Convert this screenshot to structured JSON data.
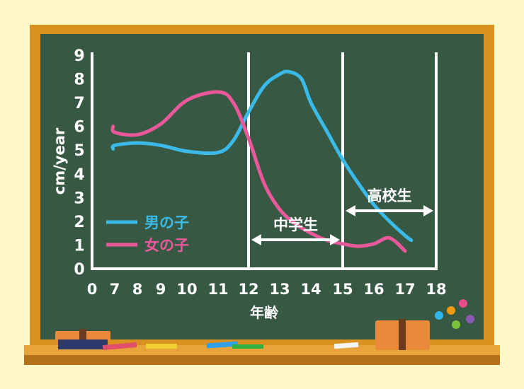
{
  "chart_data": {
    "type": "line",
    "ylabel": "cm/year",
    "xlabel": "年齢",
    "x_ticks": [
      "0",
      "7",
      "8",
      "9",
      "10",
      "11",
      "12",
      "13",
      "14",
      "15",
      "16",
      "17",
      "18"
    ],
    "y_ticks": [
      "0",
      "1",
      "2",
      "3",
      "4",
      "5",
      "6",
      "7",
      "8",
      "9"
    ],
    "ylim": [
      0,
      9
    ],
    "grid": false,
    "legend_position": "bottom-left",
    "series": [
      {
        "name": "男の子",
        "color": "#3bb9e8",
        "x": [
          6.5,
          7,
          8,
          9,
          10,
          11,
          11.5,
          12,
          12.5,
          13,
          13.3,
          13.7,
          14,
          14.5,
          15,
          15.5,
          16,
          16.5,
          17,
          17.2
        ],
        "y": [
          5.05,
          5.2,
          5.3,
          5.2,
          4.95,
          4.9,
          5.4,
          6.6,
          7.7,
          8.2,
          8.3,
          8.0,
          7.0,
          5.8,
          4.6,
          3.6,
          2.7,
          2.0,
          1.4,
          1.2
        ]
      },
      {
        "name": "女の子",
        "color": "#e8589a",
        "x": [
          6.5,
          7,
          8,
          9,
          10,
          11,
          11.5,
          12,
          12.5,
          13,
          13.5,
          14,
          14.5,
          15,
          15.5,
          16,
          16.5,
          17
        ],
        "y": [
          6.0,
          5.75,
          5.65,
          6.1,
          7.1,
          7.45,
          7.0,
          5.5,
          3.6,
          2.5,
          1.9,
          1.5,
          1.2,
          1.05,
          0.95,
          1.05,
          1.3,
          0.75
        ]
      }
    ],
    "annotations": [
      {
        "label": "中学生",
        "from": 12,
        "to": 15
      },
      {
        "label": "高校生",
        "from": 15,
        "to": 18
      }
    ]
  }
}
